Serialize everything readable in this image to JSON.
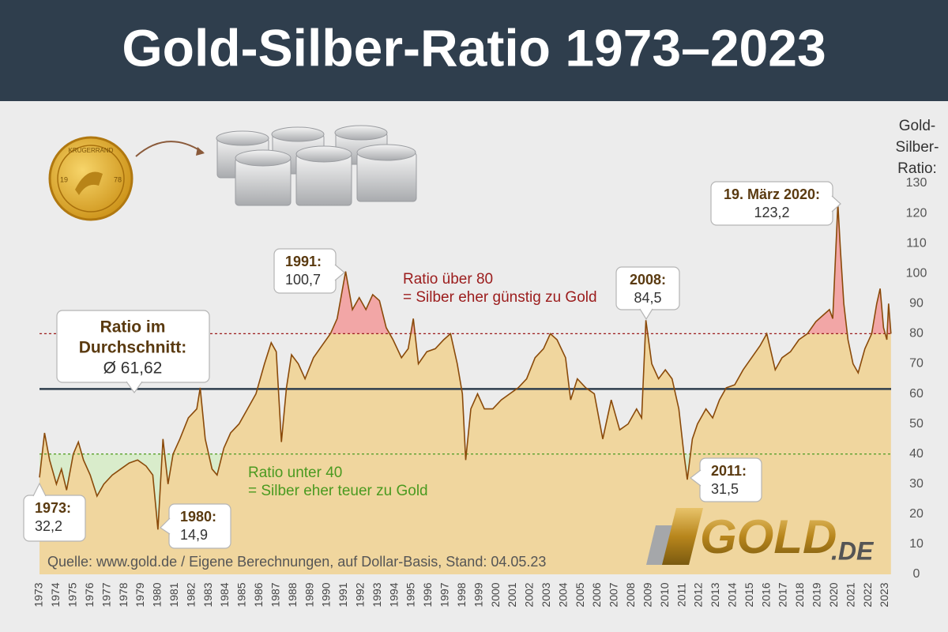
{
  "chart_data": {
    "type": "area",
    "title": "Gold-Silber-Ratio 1973–2023",
    "y_label": "Gold-Silber-Ratio:",
    "x": [
      1973.0,
      1973.3,
      1973.6,
      1974.0,
      1974.3,
      1974.6,
      1975.0,
      1975.3,
      1975.6,
      1976.0,
      1976.4,
      1976.8,
      1977.3,
      1977.8,
      1978.3,
      1978.8,
      1979.3,
      1979.7,
      1980.0,
      1980.3,
      1980.6,
      1980.9,
      1981.3,
      1981.8,
      1982.3,
      1982.5,
      1982.8,
      1983.2,
      1983.5,
      1983.9,
      1984.3,
      1984.8,
      1985.3,
      1985.8,
      1986.3,
      1986.7,
      1987.0,
      1987.3,
      1987.6,
      1987.9,
      1988.3,
      1988.7,
      1989.2,
      1989.7,
      1990.2,
      1990.6,
      1991.1,
      1991.5,
      1991.9,
      1992.3,
      1992.7,
      1993.1,
      1993.5,
      1993.9,
      1994.4,
      1994.8,
      1995.1,
      1995.4,
      1995.9,
      1996.4,
      1996.9,
      1997.3,
      1997.7,
      1998.0,
      1998.2,
      1998.5,
      1998.9,
      1999.3,
      1999.8,
      2000.3,
      2000.8,
      2001.3,
      2001.8,
      2002.3,
      2002.8,
      2003.2,
      2003.6,
      2004.1,
      2004.4,
      2004.8,
      2005.3,
      2005.8,
      2006.3,
      2006.8,
      2007.3,
      2007.8,
      2008.3,
      2008.6,
      2008.85,
      2009.2,
      2009.6,
      2010.0,
      2010.4,
      2010.8,
      2011.1,
      2011.3,
      2011.6,
      2011.9,
      2012.4,
      2012.8,
      2013.2,
      2013.6,
      2014.1,
      2014.6,
      2015.1,
      2015.6,
      2016.0,
      2016.5,
      2016.9,
      2017.4,
      2017.9,
      2018.4,
      2018.9,
      2019.3,
      2019.7,
      2019.9,
      2020.2,
      2020.35,
      2020.55,
      2020.8,
      2021.1,
      2021.4,
      2021.8,
      2022.2,
      2022.5,
      2022.7,
      2022.9,
      2023.1,
      2023.2,
      2023.34
    ],
    "values": [
      32.2,
      47,
      38,
      30,
      35,
      28,
      40,
      44,
      38,
      33,
      26,
      30,
      33,
      35,
      37,
      38,
      36,
      33,
      14.9,
      45,
      30,
      40,
      45,
      52,
      55,
      62,
      45,
      35,
      33,
      42,
      47,
      50,
      55,
      60,
      70,
      77,
      74,
      44,
      62,
      73,
      70,
      65,
      72,
      76,
      80,
      85,
      100.7,
      88,
      92,
      88,
      93,
      91,
      82,
      78,
      72,
      75,
      85,
      70,
      74,
      75,
      78,
      80,
      70,
      60,
      38,
      55,
      60,
      55,
      55,
      58,
      60,
      62,
      65,
      72,
      75,
      80,
      78,
      72,
      58,
      65,
      62,
      60,
      45,
      58,
      48,
      50,
      55,
      52,
      84.5,
      70,
      65,
      68,
      65,
      55,
      40,
      31.5,
      45,
      50,
      55,
      52,
      58,
      62,
      63,
      68,
      72,
      76,
      80,
      68,
      72,
      74,
      78,
      80,
      84,
      86,
      88,
      85,
      123.2,
      108,
      90,
      78,
      70,
      67,
      75,
      80,
      90,
      95,
      82,
      78,
      90,
      80
    ],
    "color": "#8a4a0a",
    "fill": "#f0d69e",
    "xlim": [
      1973,
      2023.35
    ],
    "xticks": [
      1973,
      1974,
      1975,
      1976,
      1977,
      1978,
      1979,
      1980,
      1981,
      1982,
      1983,
      1984,
      1985,
      1986,
      1987,
      1988,
      1989,
      1990,
      1991,
      1992,
      1993,
      1994,
      1995,
      1996,
      1997,
      1998,
      1999,
      2000,
      2001,
      2002,
      2003,
      2004,
      2005,
      2006,
      2007,
      2008,
      2009,
      2010,
      2011,
      2012,
      2013,
      2014,
      2015,
      2016,
      2017,
      2018,
      2019,
      2020,
      2021,
      2022,
      2023
    ],
    "ylim": [
      0,
      130
    ],
    "yticks": [
      0,
      10,
      20,
      30,
      40,
      50,
      60,
      70,
      80,
      90,
      100,
      110,
      120,
      130
    ],
    "grid": false,
    "reference_lines": [
      {
        "value": 80,
        "color": "#9b1c1c",
        "style": "dashed",
        "band_color": "#f2a6a6",
        "lines": [
          "Ratio über 80",
          "= Silber eher günstig zu Gold"
        ]
      },
      {
        "value": 61.62,
        "color": "#2f3e4d",
        "style": "solid",
        "lines": [
          "Ratio im",
          "Durchschnitt:"
        ],
        "value_label": "Ø 61,62"
      },
      {
        "value": 40,
        "color": "#5aa02c",
        "style": "dashed",
        "band_color": "#d9eccb",
        "lines": [
          "Ratio unter 40",
          "= Silber eher teuer zu Gold"
        ]
      }
    ],
    "annotations": [
      {
        "title": "1973:",
        "text": "32,2"
      },
      {
        "title": "1980:",
        "text": "14,9"
      },
      {
        "title": "1991:",
        "text": "100,7"
      },
      {
        "title": "2008:",
        "text": "84,5"
      },
      {
        "title": "2011:",
        "text": "31,5"
      },
      {
        "title": "19. März 2020:",
        "text": "123,2"
      }
    ],
    "source": "Quelle: www.gold.de / Eigene Berechnungen, auf Dollar-Basis, Stand: 04.05.23"
  },
  "logo": {
    "main": "GOLD",
    "suffix": ".DE"
  },
  "illustration": {
    "coin_name": "KRUGERRAND",
    "coin_left": "19",
    "coin_right": "78"
  }
}
